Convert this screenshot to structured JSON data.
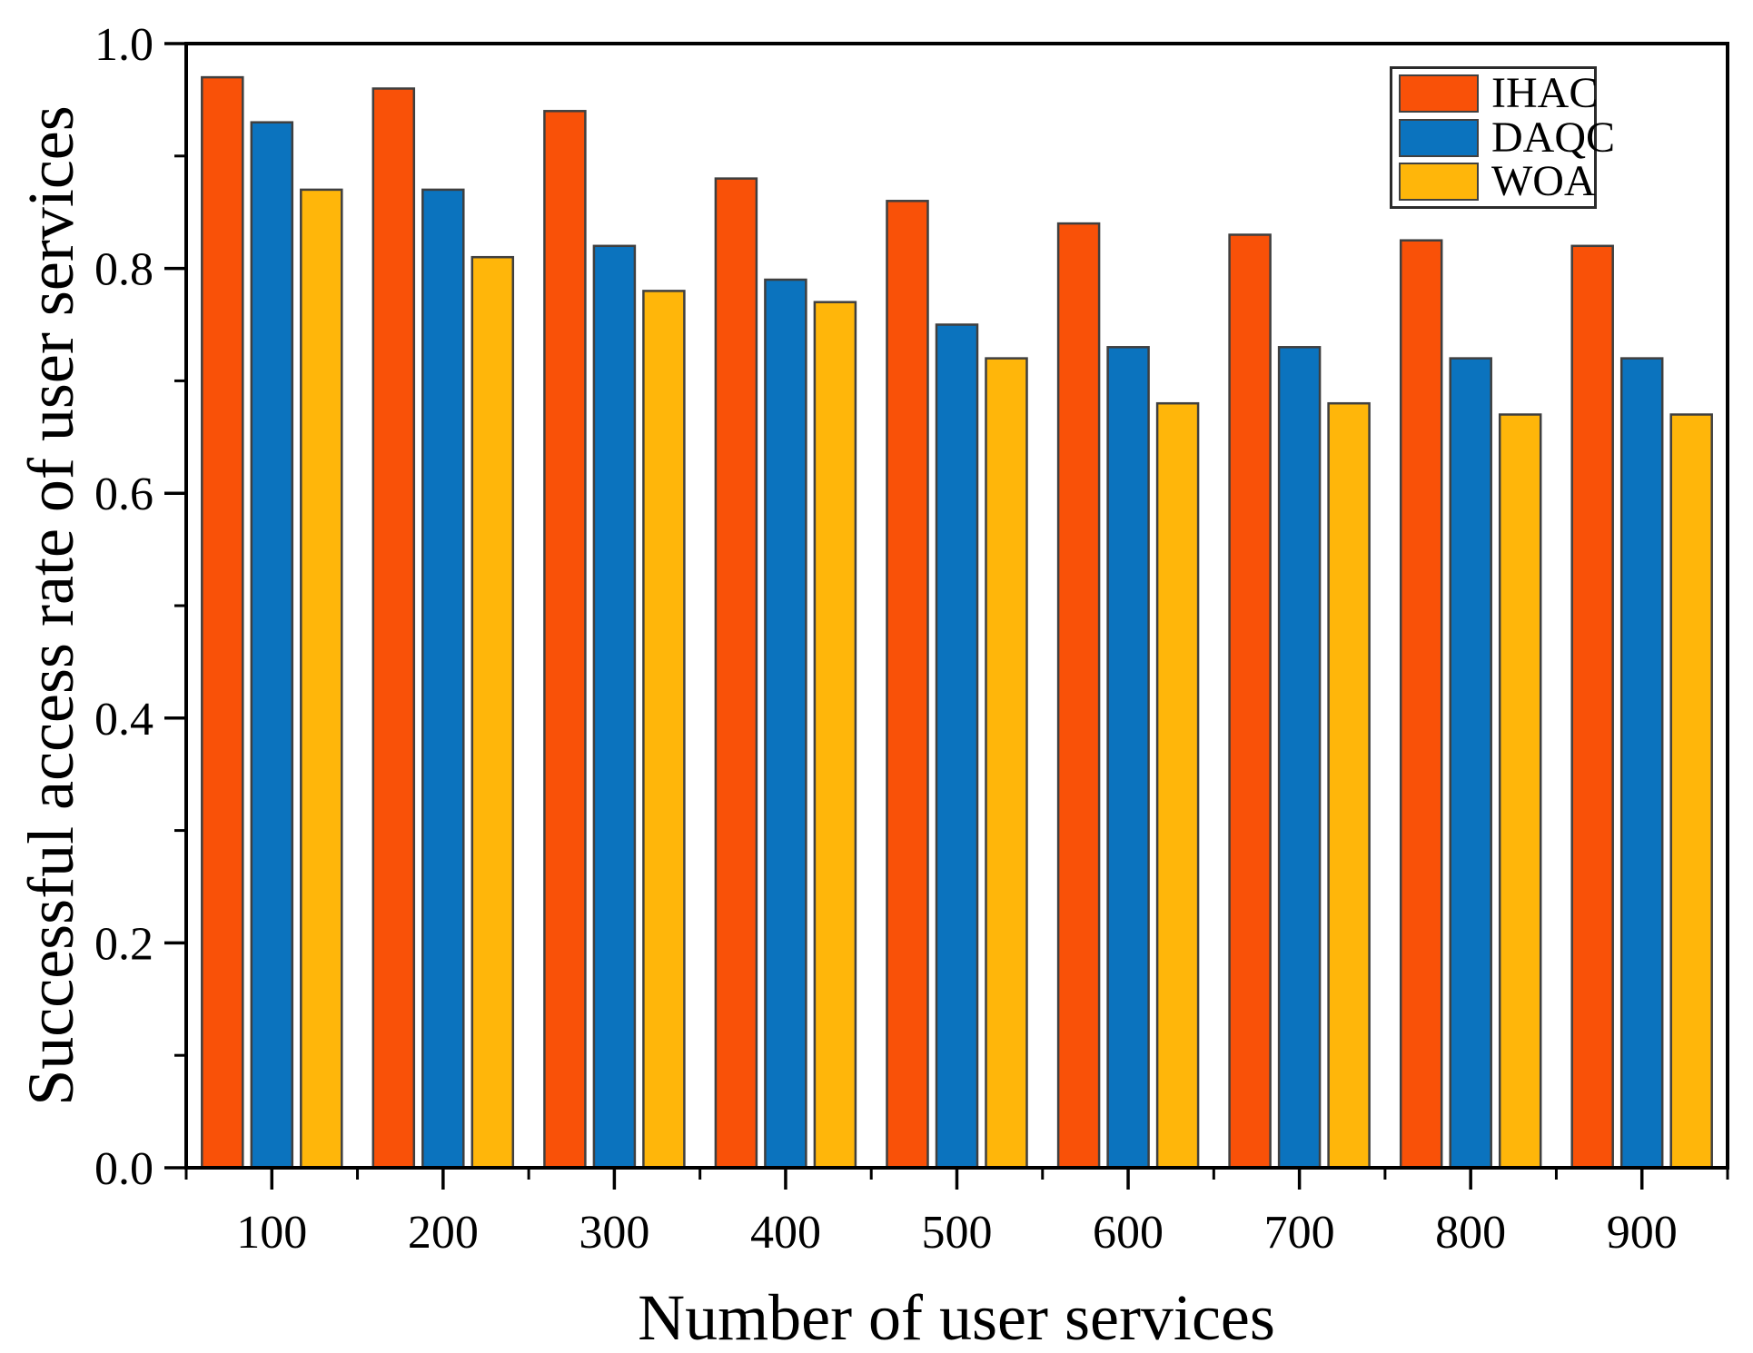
{
  "figure": {
    "background": "#ffffff",
    "text_color": "#000000"
  },
  "chart_data": {
    "type": "bar",
    "title": "",
    "xlabel": "Number of user services",
    "ylabel": "Successful access rate of user services",
    "categories": [
      "100",
      "200",
      "300",
      "400",
      "500",
      "600",
      "700",
      "800",
      "900"
    ],
    "series": [
      {
        "name": "IHAC",
        "color": "#F95108",
        "values": [
          0.97,
          0.96,
          0.94,
          0.88,
          0.86,
          0.84,
          0.83,
          0.825,
          0.82
        ]
      },
      {
        "name": "DAQC",
        "color": "#0B73BE",
        "values": [
          0.93,
          0.87,
          0.82,
          0.79,
          0.75,
          0.73,
          0.73,
          0.72,
          0.72
        ]
      },
      {
        "name": "WOA",
        "color": "#FFB60A",
        "values": [
          0.87,
          0.81,
          0.78,
          0.77,
          0.72,
          0.68,
          0.68,
          0.67,
          0.67
        ]
      }
    ],
    "ylim": [
      0.0,
      1.0
    ],
    "y_tick_labels": [
      "0.0",
      "0.2",
      "0.4",
      "0.6",
      "0.8",
      "1.0"
    ],
    "y_major_step": 0.2,
    "y_minor_step": 0.1,
    "x_minor_ticks_at_group_boundaries": true,
    "grid": false,
    "legend_position": "top-right",
    "bar_edge_color": "#3F3F3F",
    "axis_color": "#000000"
  }
}
